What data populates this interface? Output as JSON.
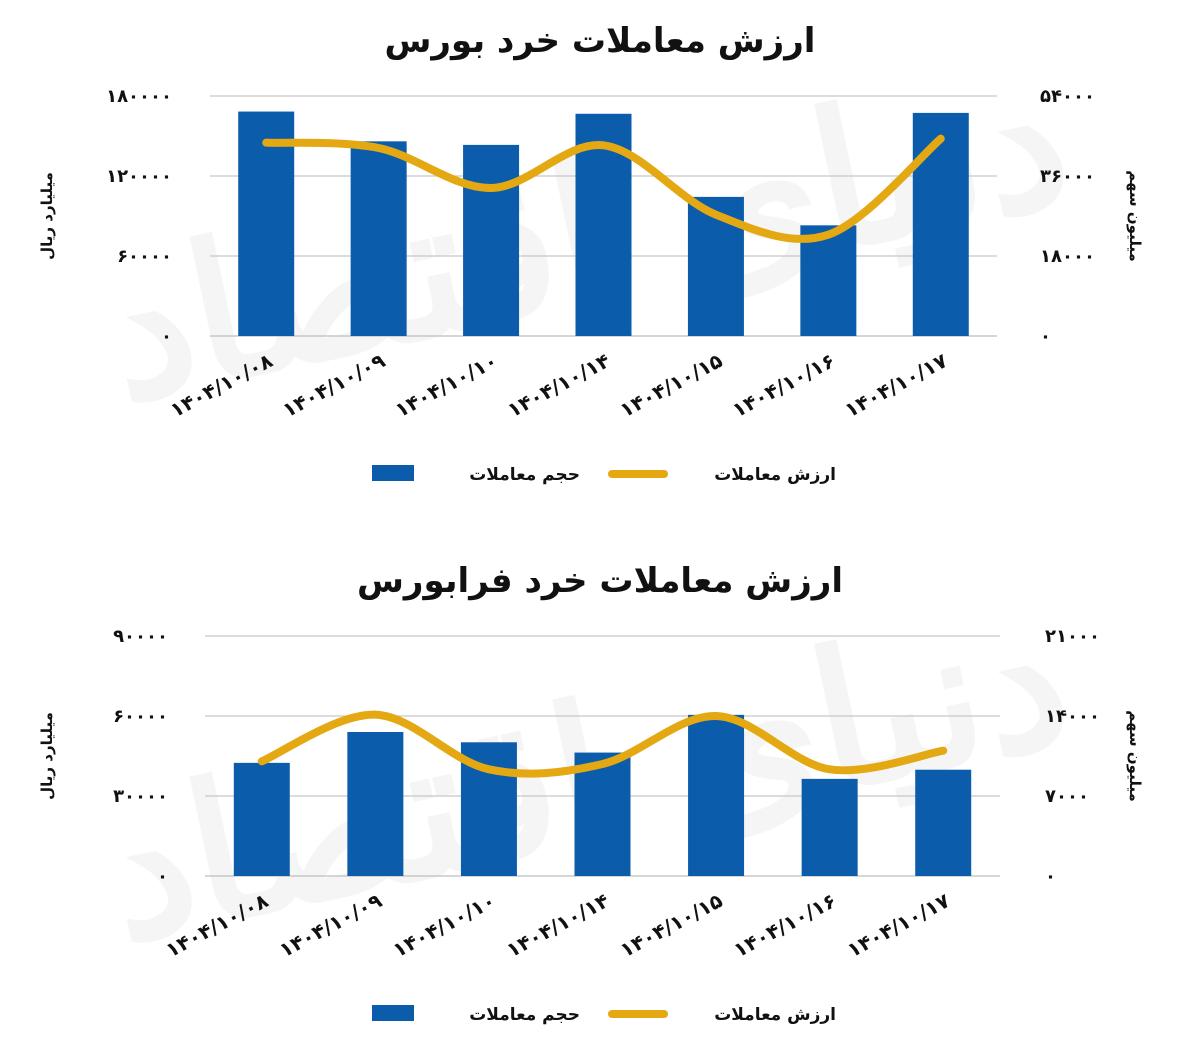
{
  "chart_data": [
    {
      "type": "bar",
      "title": "ارزش معاملات خرد بورس",
      "categories": [
        "۱۴۰۴/۱۰/۰۸",
        "۱۴۰۴/۱۰/۰۹",
        "۱۴۰۴/۱۰/۱۰",
        "۱۴۰۴/۱۰/۱۴",
        "۱۴۰۴/۱۰/۱۵",
        "۱۴۰۴/۱۰/۱۶",
        "۱۴۰۴/۱۰/۱۷"
      ],
      "ylabel": "میلیارد ریال",
      "ylabel2": "میلیون سهم",
      "ylim": [
        0,
        180000
      ],
      "ylim2": [
        0,
        54000
      ],
      "yticks": [
        "۰",
        "۶۰۰۰۰",
        "۱۲۰۰۰۰",
        "۱۸۰۰۰۰"
      ],
      "yticks2": [
        "۰",
        "۱۸۰۰۰",
        "۳۶۰۰۰",
        "۵۴۰۰۰"
      ],
      "grid": true,
      "legend_position": "bottom",
      "series": [
        {
          "name": "حجم معاملات",
          "kind": "bar",
          "axis": "right",
          "color": "#0B5DAB",
          "values": [
            50500,
            43800,
            43000,
            50000,
            31300,
            24900,
            50200
          ]
        },
        {
          "name": "ارزش معاملات",
          "kind": "line",
          "axis": "left",
          "color": "#E3A812",
          "values": [
            145000,
            141000,
            111000,
            143000,
            91000,
            76000,
            148000
          ]
        }
      ]
    },
    {
      "type": "bar",
      "title": "ارزش معاملات خرد فرابورس",
      "categories": [
        "۱۴۰۴/۱۰/۰۸",
        "۱۴۰۴/۱۰/۰۹",
        "۱۴۰۴/۱۰/۱۰",
        "۱۴۰۴/۱۰/۱۴",
        "۱۴۰۴/۱۰/۱۵",
        "۱۴۰۴/۱۰/۱۶",
        "۱۴۰۴/۱۰/۱۷"
      ],
      "ylabel": "میلیارد ریال",
      "ylabel2": "میلیون سهم",
      "ylim": [
        0,
        90000
      ],
      "ylim2": [
        0,
        21000
      ],
      "yticks": [
        "۰",
        "۳۰۰۰۰",
        "۶۰۰۰۰",
        "۹۰۰۰۰"
      ],
      "yticks2": [
        "۰",
        "۷۰۰۰",
        "۱۴۰۰۰",
        "۲۱۰۰۰"
      ],
      "grid": true,
      "legend_position": "bottom",
      "series": [
        {
          "name": "حجم معاملات",
          "kind": "bar",
          "axis": "right",
          "color": "#0B5DAB",
          "values": [
            9900,
            12600,
            11700,
            10800,
            14100,
            8500,
            9300
          ]
        },
        {
          "name": "ارزش معاملات",
          "kind": "line",
          "axis": "left",
          "color": "#E3A812",
          "values": [
            43000,
            60500,
            40000,
            42000,
            60000,
            40000,
            47000
          ]
        }
      ]
    }
  ],
  "watermark": "دنیای اقتصاد"
}
